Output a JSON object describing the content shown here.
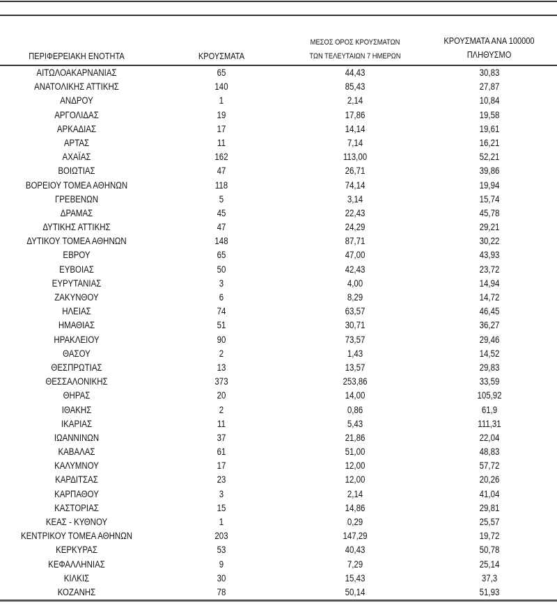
{
  "headers": {
    "region": "ΠΕΡΙΦΕΡΕΙΑΚΗ ΕΝΟΤΗΤΑ",
    "cases": "ΚΡΟΥΣΜΑΤΑ",
    "avg7_line1": "ΜΕΣΟΣ ΟΡΟΣ ΚΡΟΥΣΜΑΤΩΝ",
    "avg7_line2": "ΤΩΝ ΤΕΛΕΥΤΑΙΩΝ 7 ΗΜΕΡΩΝ",
    "per100k_line1": "ΚΡΟΥΣΜΑΤΑ ΑΝΑ 100000",
    "per100k_line2": "ΠΛΗΘΥΣΜΟ"
  },
  "rows": [
    [
      "ΑΙΤΩΛΟΑΚΑΡΝΑΝΙΑΣ",
      "65",
      "44,43",
      "30,83"
    ],
    [
      "ΑΝΑΤΟΛΙΚΗΣ ΑΤΤΙΚΗΣ",
      "140",
      "85,43",
      "27,87"
    ],
    [
      "ΑΝΔΡΟΥ",
      "1",
      "2,14",
      "10,84"
    ],
    [
      "ΑΡΓΟΛΙΔΑΣ",
      "19",
      "17,86",
      "19,58"
    ],
    [
      "ΑΡΚΑΔΙΑΣ",
      "17",
      "14,14",
      "19,61"
    ],
    [
      "ΑΡΤΑΣ",
      "11",
      "7,14",
      "16,21"
    ],
    [
      "ΑΧΑΪΑΣ",
      "162",
      "113,00",
      "52,21"
    ],
    [
      "ΒΟΙΩΤΙΑΣ",
      "47",
      "26,71",
      "39,86"
    ],
    [
      "ΒΟΡΕΙΟΥ ΤΟΜΕΑ ΑΘΗΝΩΝ",
      "118",
      "74,14",
      "19,94"
    ],
    [
      "ΓΡΕΒΕΝΩΝ",
      "5",
      "3,14",
      "15,74"
    ],
    [
      "ΔΡΑΜΑΣ",
      "45",
      "22,43",
      "45,78"
    ],
    [
      "ΔΥΤΙΚΗΣ ΑΤΤΙΚΗΣ",
      "47",
      "24,29",
      "29,21"
    ],
    [
      "ΔΥΤΙΚΟΥ ΤΟΜΕΑ ΑΘΗΝΩΝ",
      "148",
      "87,71",
      "30,22"
    ],
    [
      "ΕΒΡΟΥ",
      "65",
      "47,00",
      "43,93"
    ],
    [
      "ΕΥΒΟΙΑΣ",
      "50",
      "42,43",
      "23,72"
    ],
    [
      "ΕΥΡΥΤΑΝΙΑΣ",
      "3",
      "4,00",
      "14,94"
    ],
    [
      "ΖΑΚΥΝΘΟΥ",
      "6",
      "8,29",
      "14,72"
    ],
    [
      "ΗΛΕΙΑΣ",
      "74",
      "63,57",
      "46,45"
    ],
    [
      "ΗΜΑΘΙΑΣ",
      "51",
      "30,71",
      "36,27"
    ],
    [
      "ΗΡΑΚΛΕΙΟΥ",
      "90",
      "73,57",
      "29,46"
    ],
    [
      "ΘΑΣΟΥ",
      "2",
      "1,43",
      "14,52"
    ],
    [
      "ΘΕΣΠΡΩΤΙΑΣ",
      "13",
      "13,57",
      "29,83"
    ],
    [
      "ΘΕΣΣΑΛΟΝΙΚΗΣ",
      "373",
      "253,86",
      "33,59"
    ],
    [
      "ΘΗΡΑΣ",
      "20",
      "14,00",
      "105,92"
    ],
    [
      "ΙΘΑΚΗΣ",
      "2",
      "0,86",
      "61,9"
    ],
    [
      "ΙΚΑΡΙΑΣ",
      "11",
      "5,43",
      "111,31"
    ],
    [
      "ΙΩΑΝΝΙΝΩΝ",
      "37",
      "21,86",
      "22,04"
    ],
    [
      "ΚΑΒΑΛΑΣ",
      "61",
      "51,00",
      "48,83"
    ],
    [
      "ΚΑΛΥΜΝΟΥ",
      "17",
      "12,00",
      "57,72"
    ],
    [
      "ΚΑΡΔΙΤΣΑΣ",
      "23",
      "12,00",
      "20,26"
    ],
    [
      "ΚΑΡΠΑΘΟΥ",
      "3",
      "2,14",
      "41,04"
    ],
    [
      "ΚΑΣΤΟΡΙΑΣ",
      "15",
      "14,86",
      "29,81"
    ],
    [
      "ΚΕΑΣ - ΚΥΘΝΟΥ",
      "1",
      "0,29",
      "25,57"
    ],
    [
      "ΚΕΝΤΡΙΚΟΥ ΤΟΜΕΑ ΑΘΗΝΩΝ",
      "203",
      "147,29",
      "19,72"
    ],
    [
      "ΚΕΡΚΥΡΑΣ",
      "53",
      "40,43",
      "50,78"
    ],
    [
      "ΚΕΦΑΛΛΗΝΙΑΣ",
      "9",
      "7,29",
      "25,14"
    ],
    [
      "ΚΙΛΚΙΣ",
      "30",
      "15,43",
      "37,3"
    ],
    [
      "ΚΟΖΑΝΗΣ",
      "78",
      "50,14",
      "51,93"
    ]
  ]
}
